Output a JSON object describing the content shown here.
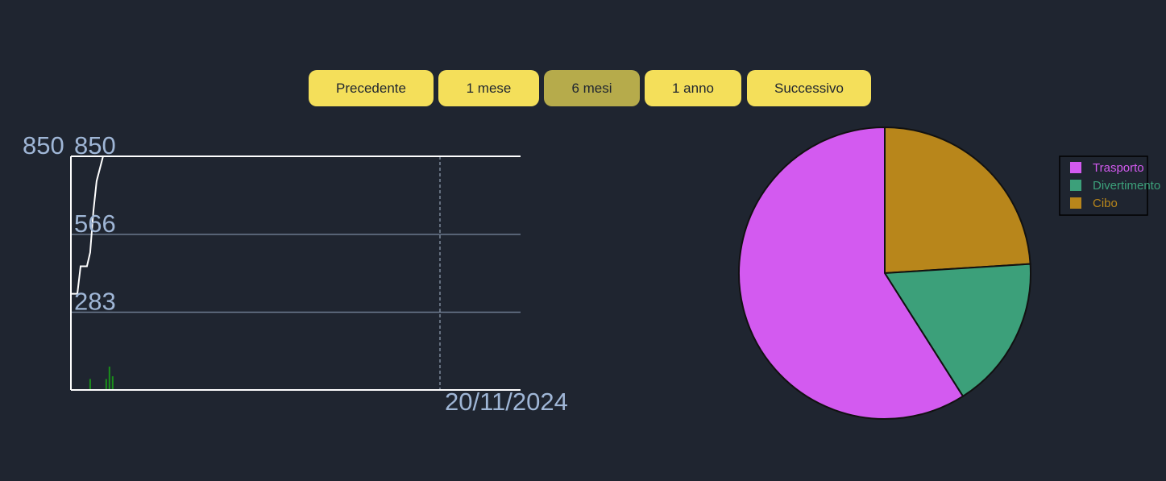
{
  "controls": {
    "prev_label": "Precedente",
    "month_label": "1 mese",
    "six_month_label": "6 mesi",
    "year_label": "1 anno",
    "next_label": "Successivo",
    "active": "6 mesi"
  },
  "colors": {
    "button": "#f4df5a",
    "button_active": "#b6ab4b",
    "background": "#1f2530",
    "axis_text": "#9fb6d6",
    "line": "#ffffff",
    "bars": "#1a8f1a"
  },
  "chart_data": [
    {
      "type": "line",
      "x_tick_label": "20/11/2024",
      "y_ticks": [
        283,
        566,
        850
      ],
      "y_tick_labels": [
        "283",
        "566",
        "850"
      ],
      "y_max_label": "850",
      "ylim": [
        0,
        850
      ],
      "grid": true,
      "line_series": {
        "x": [
          0,
          0.5,
          1,
          1.5,
          2,
          2.5,
          3,
          3.5,
          4,
          5,
          6,
          7
        ],
        "values": [
          350,
          350,
          350,
          450,
          450,
          450,
          500,
          650,
          760,
          850,
          850,
          850
        ]
      },
      "bar_series": {
        "x": [
          3,
          5.5,
          6,
          6.5
        ],
        "values": [
          40,
          40,
          85,
          50
        ]
      }
    },
    {
      "type": "pie",
      "labels": [
        "Trasporto",
        "Divertimento",
        "Cibo"
      ],
      "values": [
        59,
        17,
        24
      ],
      "colors": [
        "#d35af0",
        "#3ca07a",
        "#b8861b"
      ],
      "legend_position": "top-right"
    }
  ]
}
